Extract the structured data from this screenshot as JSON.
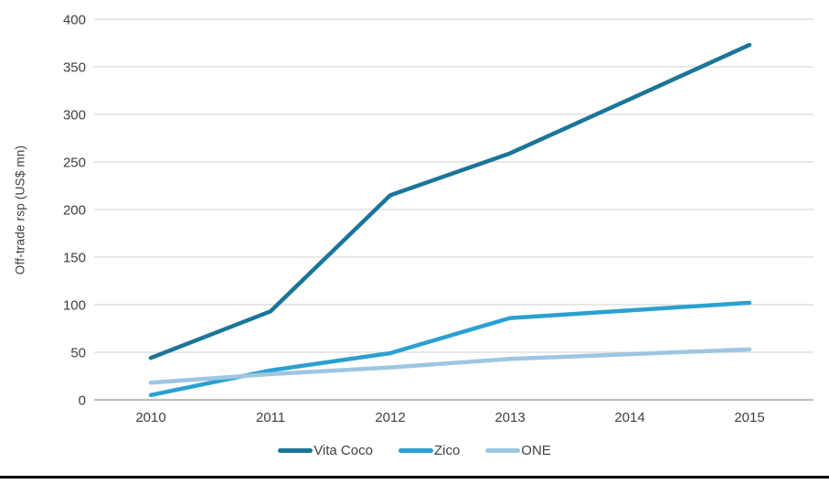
{
  "chart_data": {
    "type": "line",
    "x": [
      2010,
      2011,
      2012,
      2013,
      2014,
      2015
    ],
    "xticks": [
      "2010",
      "2011",
      "2012",
      "2013",
      "2014",
      "2015"
    ],
    "yticks": [
      0,
      50,
      100,
      150,
      200,
      250,
      300,
      350,
      400
    ],
    "ylim": [
      0,
      400
    ],
    "ylabel": "Off-trade rsp (US$ mn)",
    "xlabel": "",
    "title": "",
    "grid": true,
    "legend_position": "bottom",
    "series": [
      {
        "name": "Vita Coco",
        "color": "#1b7599",
        "values": [
          44,
          93,
          215,
          259,
          316,
          373
        ]
      },
      {
        "name": "Zico",
        "color": "#2ba0d1",
        "values": [
          5,
          31,
          49,
          86,
          94,
          102
        ]
      },
      {
        "name": "ONE",
        "color": "#9cc6e2",
        "values": [
          18,
          27,
          34,
          43,
          48,
          53
        ]
      }
    ]
  },
  "styles": {
    "gridline_color": "#d9d9d9",
    "zero_line_color": "#a6a6a6",
    "text_color": "#404040",
    "background_color": "#ffffff",
    "bottom_rule_color": "#000000"
  }
}
